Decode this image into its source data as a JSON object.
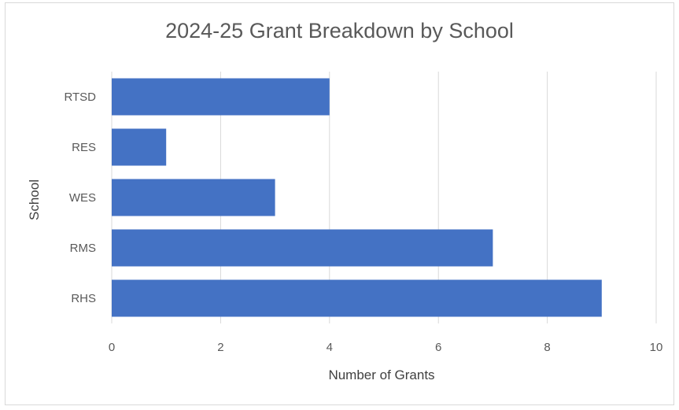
{
  "chart_data": {
    "type": "bar",
    "orientation": "horizontal",
    "title": "2024-25 Grant Breakdown by School",
    "xlabel": "Number of Grants",
    "ylabel": "School",
    "categories": [
      "RTSD",
      "RES",
      "WES",
      "RMS",
      "RHS"
    ],
    "values": [
      4,
      1,
      3,
      7,
      9
    ],
    "xlim": [
      0,
      10
    ],
    "xticks": [
      0,
      2,
      4,
      6,
      8,
      10
    ],
    "grid": true,
    "legend": "none",
    "bar_color": "#4472C4",
    "grid_color": "#d9d9d9"
  }
}
